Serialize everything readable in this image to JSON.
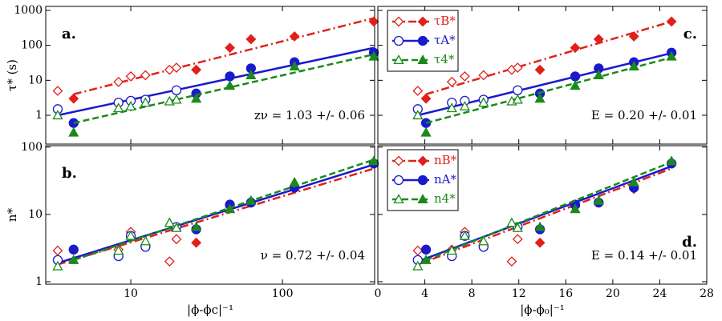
{
  "chart_data": [
    {
      "type": "scatter",
      "panel_label": "a.",
      "annotation": "zν = 1.03 +/- 0.06",
      "y_label": "τ* (s)",
      "xscale": "log",
      "yscale": "log",
      "xlim": [
        2.75,
        405
      ],
      "ylim": [
        0.15,
        1300
      ],
      "xticks": [
        10,
        100
      ],
      "yticks": [
        1,
        10,
        100,
        1000
      ],
      "show_xtick_labels": false,
      "show_ytick_labels": true,
      "legend": false,
      "series": [
        {
          "name": "τB*",
          "color": "#e0201b",
          "marker": "diamond",
          "dash": "dashdot",
          "x": [
            3.3,
            4.2,
            8.3,
            10,
            12.5,
            18,
            20,
            27,
            45,
            62,
            120,
            400
          ],
          "values": [
            5,
            3,
            9,
            13,
            14,
            20,
            23,
            20,
            85,
            150,
            180,
            480
          ],
          "filled": [
            false,
            true,
            false,
            false,
            false,
            false,
            false,
            true,
            true,
            true,
            true,
            true
          ],
          "fit": {
            "x": [
              4.2,
              400
            ],
            "values": [
              4,
              600
            ]
          }
        },
        {
          "name": "τA*",
          "color": "#1a1acc",
          "marker": "circle",
          "dash": "solid",
          "x": [
            3.3,
            4.2,
            8.3,
            10,
            12.5,
            20,
            27,
            45,
            62,
            120,
            400
          ],
          "values": [
            1.5,
            0.6,
            2.3,
            2.6,
            2.8,
            5.2,
            4.2,
            13,
            22,
            33,
            62
          ],
          "filled": [
            false,
            true,
            false,
            false,
            false,
            false,
            true,
            true,
            true,
            true,
            true
          ],
          "fit": {
            "x": [
              3.3,
              400
            ],
            "values": [
              1,
              85
            ]
          }
        },
        {
          "name": "τ4*",
          "color": "#1a8a1a",
          "marker": "triangle",
          "dash": "dashed",
          "x": [
            3.3,
            4.2,
            8.3,
            10,
            12.5,
            18,
            20,
            27,
            45,
            62,
            120,
            400
          ],
          "values": [
            1.0,
            0.32,
            1.6,
            1.8,
            2.3,
            2.5,
            2.8,
            3.0,
            7,
            14,
            25,
            48
          ],
          "filled": [
            false,
            true,
            false,
            false,
            false,
            false,
            false,
            true,
            true,
            true,
            true,
            true
          ],
          "fit": {
            "x": [
              4.2,
              400
            ],
            "values": [
              0.6,
              55
            ]
          }
        }
      ]
    },
    {
      "type": "scatter",
      "panel_label": "b.",
      "annotation": "ν = 0.72 +/-  0.04",
      "y_label": "n*",
      "x_label": "|ϕ-ϕc|⁻¹",
      "xscale": "log",
      "yscale": "log",
      "xlim": [
        2.75,
        405
      ],
      "ylim": [
        0.92,
        105
      ],
      "xticks": [
        10,
        100
      ],
      "yticks": [
        1,
        10,
        100
      ],
      "show_xtick_labels": true,
      "show_ytick_labels": true,
      "legend": false,
      "series": [
        {
          "name": "nB*",
          "color": "#e0201b",
          "marker": "diamond",
          "dash": "dashdot",
          "x": [
            3.3,
            4.2,
            8.3,
            10,
            12.5,
            18,
            20,
            27,
            45,
            62,
            120,
            400
          ],
          "values": [
            2.9,
            3.0,
            3.0,
            5.5,
            3.5,
            2.0,
            4.3,
            3.8,
            13,
            15,
            24,
            58
          ],
          "filled": [
            false,
            true,
            false,
            false,
            false,
            false,
            false,
            true,
            true,
            true,
            true,
            true
          ],
          "fit": {
            "x": [
              3.3,
              400
            ],
            "values": [
              1.8,
              48
            ]
          }
        },
        {
          "name": "nA*",
          "color": "#1a1acc",
          "marker": "circle",
          "dash": "solid",
          "x": [
            3.3,
            4.2,
            8.3,
            10,
            12.5,
            20,
            27,
            45,
            62,
            120,
            400
          ],
          "values": [
            2.1,
            3.0,
            2.4,
            4.8,
            3.3,
            6.5,
            6.0,
            14,
            15,
            25,
            57
          ],
          "filled": [
            false,
            true,
            false,
            false,
            false,
            false,
            true,
            true,
            true,
            true,
            true
          ],
          "fit": {
            "x": [
              3.3,
              400
            ],
            "values": [
              1.9,
              55
            ]
          }
        },
        {
          "name": "n4*",
          "color": "#1a8a1a",
          "marker": "triangle",
          "dash": "dashed",
          "x": [
            3.3,
            4.2,
            8.3,
            10,
            12.5,
            18,
            20,
            27,
            45,
            62,
            120,
            400
          ],
          "values": [
            1.7,
            2.1,
            2.9,
            4.8,
            4.0,
            7.5,
            6.3,
            6.5,
            12,
            16,
            30,
            62
          ],
          "filled": [
            false,
            true,
            false,
            false,
            false,
            false,
            false,
            true,
            true,
            true,
            true,
            true
          ],
          "fit": {
            "x": [
              4.2,
              400
            ],
            "values": [
              2.1,
              65
            ]
          }
        }
      ]
    },
    {
      "type": "scatter",
      "panel_label": "c.",
      "annotation": "E = 0.20 +/- 0.01",
      "xscale": "linear",
      "yscale": "log",
      "xlim": [
        0,
        28
      ],
      "ylim": [
        0.15,
        1300
      ],
      "xticks": [
        0,
        4,
        8,
        12,
        16,
        20,
        24,
        28
      ],
      "yticks": [
        1,
        10,
        100,
        1000
      ],
      "show_xtick_labels": false,
      "show_ytick_labels": false,
      "legend": true,
      "series": [
        {
          "name": "τB*",
          "color": "#e0201b",
          "marker": "diamond",
          "dash": "dashdot",
          "x": [
            3.4,
            4.1,
            6.3,
            7.4,
            9.0,
            11.4,
            11.9,
            13.8,
            16.8,
            18.8,
            21.8,
            25.0
          ],
          "values": [
            5,
            3,
            9,
            13,
            14,
            20,
            23,
            20,
            85,
            150,
            180,
            480
          ],
          "filled": [
            false,
            true,
            false,
            false,
            false,
            false,
            false,
            true,
            true,
            true,
            true,
            true
          ],
          "fit": {
            "x": [
              4.1,
              25
            ],
            "values": [
              4,
              480
            ]
          }
        },
        {
          "name": "τA*",
          "color": "#1a1acc",
          "marker": "circle",
          "dash": "solid",
          "x": [
            3.4,
            4.1,
            6.3,
            7.4,
            9.0,
            11.9,
            13.8,
            16.8,
            18.8,
            21.8,
            25.0
          ],
          "values": [
            1.5,
            0.6,
            2.3,
            2.6,
            2.8,
            5.2,
            4.2,
            13,
            22,
            33,
            62
          ],
          "filled": [
            false,
            true,
            false,
            false,
            false,
            false,
            true,
            true,
            true,
            true,
            true
          ],
          "fit": {
            "x": [
              3.4,
              25
            ],
            "values": [
              1,
              60
            ]
          }
        },
        {
          "name": "τ4*",
          "color": "#1a8a1a",
          "marker": "triangle",
          "dash": "dashed",
          "x": [
            3.4,
            4.1,
            6.3,
            7.4,
            9.0,
            11.4,
            11.9,
            13.8,
            16.8,
            18.8,
            21.8,
            25.0
          ],
          "values": [
            1.0,
            0.32,
            1.6,
            1.8,
            2.3,
            2.5,
            2.8,
            3.0,
            7,
            14,
            25,
            48
          ],
          "filled": [
            false,
            true,
            false,
            false,
            false,
            false,
            false,
            true,
            true,
            true,
            true,
            true
          ],
          "fit": {
            "x": [
              4.1,
              25
            ],
            "values": [
              0.6,
              45
            ]
          }
        }
      ]
    },
    {
      "type": "scatter",
      "panel_label": "d.",
      "annotation": "E = 0.14 +/- 0.01",
      "x_label": "|ϕ-ϕ₀|⁻¹",
      "xscale": "linear",
      "yscale": "log",
      "xlim": [
        0,
        28
      ],
      "ylim": [
        0.92,
        105
      ],
      "xticks": [
        0,
        4,
        8,
        12,
        16,
        20,
        24,
        28
      ],
      "yticks": [
        1,
        10,
        100
      ],
      "show_xtick_labels": true,
      "show_ytick_labels": false,
      "legend": true,
      "series": [
        {
          "name": "nB*",
          "color": "#e0201b",
          "marker": "diamond",
          "dash": "dashdot",
          "x": [
            3.4,
            4.1,
            6.3,
            7.4,
            9.0,
            11.4,
            11.9,
            13.8,
            16.8,
            18.8,
            21.8,
            25.0
          ],
          "values": [
            2.9,
            3.0,
            3.0,
            5.5,
            3.5,
            2.0,
            4.3,
            3.8,
            13,
            15,
            24,
            58
          ],
          "filled": [
            false,
            true,
            false,
            false,
            false,
            false,
            false,
            true,
            true,
            true,
            true,
            true
          ],
          "fit": {
            "x": [
              3.4,
              25
            ],
            "values": [
              1.8,
              48
            ]
          }
        },
        {
          "name": "nA*",
          "color": "#1a1acc",
          "marker": "circle",
          "dash": "solid",
          "x": [
            3.4,
            4.1,
            6.3,
            7.4,
            9.0,
            11.9,
            13.8,
            16.8,
            18.8,
            21.8,
            25.0
          ],
          "values": [
            2.1,
            3.0,
            2.4,
            4.8,
            3.3,
            6.5,
            6.0,
            14,
            15,
            25,
            57
          ],
          "filled": [
            false,
            true,
            false,
            false,
            false,
            false,
            true,
            true,
            true,
            true,
            true
          ],
          "fit": {
            "x": [
              3.4,
              25
            ],
            "values": [
              2,
              52
            ]
          }
        },
        {
          "name": "n4*",
          "color": "#1a8a1a",
          "marker": "triangle",
          "dash": "dashed",
          "x": [
            3.4,
            4.1,
            6.3,
            7.4,
            9.0,
            11.4,
            11.9,
            13.8,
            16.8,
            18.8,
            21.8,
            25.0
          ],
          "values": [
            1.7,
            2.1,
            2.9,
            4.8,
            4.0,
            7.5,
            6.3,
            6.5,
            12,
            16,
            30,
            62
          ],
          "filled": [
            false,
            true,
            false,
            false,
            false,
            false,
            false,
            true,
            true,
            true,
            true,
            true
          ],
          "fit": {
            "x": [
              4.1,
              25
            ],
            "values": [
              2.1,
              60
            ]
          }
        }
      ]
    }
  ]
}
